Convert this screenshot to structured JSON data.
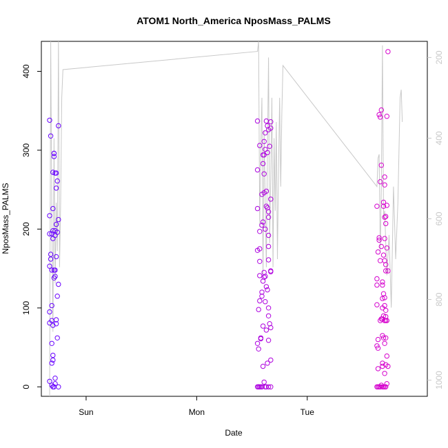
{
  "chart_data": {
    "type": "scatter",
    "title": "ATOM1 North_America NposMass_PALMS",
    "xlabel": "Date",
    "ylabel": "NposMass_PALMS",
    "x_unit": "days",
    "xlim": [
      -0.33,
      2.98
    ],
    "ylim": [
      -12,
      438
    ],
    "x_ticks": [
      {
        "value": 0,
        "label": "Sun"
      },
      {
        "value": 1,
        "label": "Mon"
      },
      {
        "value": 2,
        "label": "Tue"
      }
    ],
    "y_ticks": [
      0,
      100,
      200,
      300,
      400
    ],
    "secondary_axis": {
      "label": "",
      "ylim": [
        1040,
        160
      ],
      "ticks": [
        200,
        400,
        600,
        800,
        1000
      ],
      "color": "#c8c8c8"
    },
    "grid": false,
    "legend": "none",
    "colors": {
      "start": "#6600ff",
      "end": "#e000c8",
      "profile_line": "#c8c8c8"
    },
    "profile_line": [
      {
        "x": -0.33,
        "y": 1040
      },
      {
        "x": -0.32,
        "y": 160
      },
      {
        "x": -0.31,
        "y": 600
      },
      {
        "x": -0.3,
        "y": 880
      },
      {
        "x": -0.29,
        "y": 400
      },
      {
        "x": -0.28,
        "y": 760
      },
      {
        "x": -0.27,
        "y": 560
      },
      {
        "x": -0.26,
        "y": 680
      },
      {
        "x": -0.25,
        "y": 160
      },
      {
        "x": -0.24,
        "y": 720
      },
      {
        "x": -0.23,
        "y": 560
      },
      {
        "x": -0.22,
        "y": 300
      },
      {
        "x": -0.21,
        "y": 230
      },
      {
        "x": 1.55,
        "y": 185
      },
      {
        "x": 1.56,
        "y": 160
      },
      {
        "x": 1.57,
        "y": 620
      },
      {
        "x": 1.58,
        "y": 420
      },
      {
        "x": 1.59,
        "y": 300
      },
      {
        "x": 1.6,
        "y": 740
      },
      {
        "x": 1.61,
        "y": 380
      },
      {
        "x": 1.62,
        "y": 560
      },
      {
        "x": 1.63,
        "y": 720
      },
      {
        "x": 1.64,
        "y": 440
      },
      {
        "x": 1.65,
        "y": 200
      },
      {
        "x": 1.66,
        "y": 660
      },
      {
        "x": 1.67,
        "y": 500
      },
      {
        "x": 1.68,
        "y": 300
      },
      {
        "x": 1.69,
        "y": 720
      },
      {
        "x": 1.7,
        "y": 400
      },
      {
        "x": 1.71,
        "y": 580
      },
      {
        "x": 1.72,
        "y": 360
      },
      {
        "x": 1.73,
        "y": 700
      },
      {
        "x": 1.74,
        "y": 480
      },
      {
        "x": 1.75,
        "y": 300
      },
      {
        "x": 1.76,
        "y": 520
      },
      {
        "x": 1.77,
        "y": 340
      },
      {
        "x": 1.78,
        "y": 220
      },
      {
        "x": 2.63,
        "y": 520
      },
      {
        "x": 2.64,
        "y": 450
      },
      {
        "x": 2.65,
        "y": 440
      },
      {
        "x": 2.66,
        "y": 680
      },
      {
        "x": 2.67,
        "y": 520
      },
      {
        "x": 2.68,
        "y": 170
      },
      {
        "x": 2.69,
        "y": 600
      },
      {
        "x": 2.7,
        "y": 580
      },
      {
        "x": 2.72,
        "y": 740
      },
      {
        "x": 2.74,
        "y": 640
      },
      {
        "x": 2.76,
        "y": 820
      },
      {
        "x": 2.78,
        "y": 520
      },
      {
        "x": 2.8,
        "y": 700
      },
      {
        "x": 2.82,
        "y": 560
      },
      {
        "x": 2.84,
        "y": 300
      },
      {
        "x": 2.85,
        "y": 280
      },
      {
        "x": 2.86,
        "y": 360
      }
    ],
    "series": [
      {
        "values": [
          [
            -0.33,
            7
          ],
          [
            -0.33,
            81
          ],
          [
            -0.33,
            95
          ],
          [
            -0.33,
            153
          ],
          [
            -0.33,
            194
          ],
          [
            -0.33,
            217
          ],
          [
            -0.33,
            338
          ],
          [
            -0.32,
            318
          ],
          [
            -0.32,
            168
          ],
          [
            -0.32,
            162
          ],
          [
            -0.31,
            2
          ],
          [
            -0.31,
            55
          ],
          [
            -0.31,
            30
          ],
          [
            -0.31,
            84
          ],
          [
            -0.31,
            103
          ],
          [
            -0.31,
            148
          ],
          [
            -0.31,
            194
          ],
          [
            -0.3,
            272
          ],
          [
            -0.3,
            0
          ],
          [
            -0.3,
            34
          ],
          [
            -0.3,
            40
          ],
          [
            -0.3,
            78
          ],
          [
            -0.3,
            188
          ],
          [
            -0.3,
            198
          ],
          [
            -0.3,
            226
          ],
          [
            -0.29,
            0
          ],
          [
            -0.29,
            148
          ],
          [
            -0.29,
            138
          ],
          [
            -0.29,
            296
          ],
          [
            -0.29,
            296
          ],
          [
            -0.29,
            292
          ],
          [
            -0.28,
            4
          ],
          [
            -0.28,
            198
          ],
          [
            -0.28,
            192
          ],
          [
            -0.28,
            148
          ],
          [
            -0.28,
            140
          ],
          [
            -0.28,
            271
          ],
          [
            -0.28,
            11
          ],
          [
            -0.27,
            85
          ],
          [
            -0.27,
            80
          ],
          [
            -0.27,
            165
          ],
          [
            -0.27,
            252
          ],
          [
            -0.27,
            271
          ],
          [
            -0.27,
            206
          ],
          [
            -0.26,
            115
          ],
          [
            -0.26,
            196
          ],
          [
            -0.26,
            62
          ],
          [
            -0.26,
            261
          ],
          [
            -0.25,
            0
          ],
          [
            -0.25,
            212
          ],
          [
            -0.25,
            130
          ],
          [
            -0.25,
            331
          ]
        ]
      },
      {
        "values": [
          [
            1.55,
            337
          ],
          [
            1.55,
            275
          ],
          [
            1.55,
            226
          ],
          [
            1.55,
            173
          ],
          [
            1.55,
            55
          ],
          [
            1.55,
            0
          ],
          [
            1.56,
            98
          ],
          [
            1.56,
            48
          ],
          [
            1.56,
            0
          ],
          [
            1.56,
            0
          ],
          [
            1.57,
            306
          ],
          [
            1.57,
            197
          ],
          [
            1.57,
            175
          ],
          [
            1.57,
            159
          ],
          [
            1.57,
            141
          ],
          [
            1.57,
            109
          ],
          [
            1.57,
            0
          ],
          [
            1.58,
            61
          ],
          [
            1.58,
            0
          ],
          [
            1.58,
            62
          ],
          [
            1.59,
            244
          ],
          [
            1.59,
            205
          ],
          [
            1.59,
            120
          ],
          [
            1.59,
            115
          ],
          [
            1.59,
            0
          ],
          [
            1.6,
            294
          ],
          [
            1.6,
            283
          ],
          [
            1.6,
            209
          ],
          [
            1.6,
            134
          ],
          [
            1.6,
            26
          ],
          [
            1.6,
            77
          ],
          [
            1.61,
            311
          ],
          [
            1.61,
            294
          ],
          [
            1.61,
            270
          ],
          [
            1.61,
            246
          ],
          [
            1.61,
            145
          ],
          [
            1.61,
            139
          ],
          [
            1.61,
            6
          ],
          [
            1.62,
            322
          ],
          [
            1.62,
            301
          ],
          [
            1.62,
            200
          ],
          [
            1.62,
            140
          ],
          [
            1.62,
            108
          ],
          [
            1.62,
            0
          ],
          [
            1.63,
            337
          ],
          [
            1.63,
            248
          ],
          [
            1.63,
            229
          ],
          [
            1.63,
            127
          ],
          [
            1.63,
            72
          ],
          [
            1.63,
            0
          ],
          [
            1.64,
            331
          ],
          [
            1.64,
            297
          ],
          [
            1.64,
            227
          ],
          [
            1.64,
            123
          ],
          [
            1.64,
            30
          ],
          [
            1.65,
            326
          ],
          [
            1.65,
            222
          ],
          [
            1.65,
            215
          ],
          [
            1.65,
            192
          ],
          [
            1.65,
            178
          ],
          [
            1.65,
            161
          ],
          [
            1.65,
            100
          ],
          [
            1.65,
            90
          ],
          [
            1.65,
            59
          ],
          [
            1.65,
            0
          ],
          [
            1.66,
            305
          ],
          [
            1.66,
            80
          ],
          [
            1.67,
            336
          ],
          [
            1.67,
            328
          ],
          [
            1.67,
            238
          ],
          [
            1.67,
            147
          ],
          [
            1.67,
            146
          ],
          [
            1.67,
            34
          ],
          [
            1.67,
            75
          ],
          [
            1.67,
            0
          ],
          [
            2.63,
            0
          ],
          [
            2.63,
            52
          ],
          [
            2.63,
            104
          ],
          [
            2.63,
            129
          ],
          [
            2.63,
            137
          ],
          [
            2.63,
            229
          ],
          [
            2.64,
            0
          ],
          [
            2.64,
            49
          ],
          [
            2.64,
            60
          ],
          [
            2.64,
            23
          ],
          [
            2.64,
            171
          ],
          [
            2.65,
            0
          ],
          [
            2.65,
            189
          ],
          [
            2.65,
            186
          ],
          [
            2.65,
            345
          ],
          [
            2.66,
            0
          ],
          [
            2.66,
            84
          ],
          [
            2.66,
            160
          ],
          [
            2.66,
            260
          ],
          [
            2.66,
            342
          ],
          [
            2.67,
            86
          ],
          [
            2.67,
            2
          ],
          [
            2.67,
            178
          ],
          [
            2.67,
            281
          ],
          [
            2.67,
            351
          ],
          [
            2.68,
            0
          ],
          [
            2.68,
            26
          ],
          [
            2.68,
            30
          ],
          [
            2.68,
            65
          ],
          [
            2.68,
            86
          ],
          [
            2.68,
            100
          ],
          [
            2.68,
            129
          ],
          [
            2.68,
            133
          ],
          [
            2.68,
            112
          ],
          [
            2.69,
            0
          ],
          [
            2.69,
            62
          ],
          [
            2.69,
            90
          ],
          [
            2.69,
            118
          ],
          [
            2.69,
            167
          ],
          [
            2.69,
            229
          ],
          [
            2.69,
            234
          ],
          [
            2.7,
            0
          ],
          [
            2.7,
            17
          ],
          [
            2.7,
            55
          ],
          [
            2.7,
            84
          ],
          [
            2.7,
            103
          ],
          [
            2.7,
            113
          ],
          [
            2.7,
            160
          ],
          [
            2.7,
            188
          ],
          [
            2.7,
            215
          ],
          [
            2.7,
            256
          ],
          [
            2.7,
            266
          ],
          [
            2.71,
            0
          ],
          [
            2.71,
            28
          ],
          [
            2.71,
            62
          ],
          [
            2.71,
            84
          ],
          [
            2.71,
            89
          ],
          [
            2.71,
            97
          ],
          [
            2.71,
            147
          ],
          [
            2.71,
            155
          ],
          [
            2.71,
            207
          ],
          [
            2.71,
            216
          ],
          [
            2.72,
            4
          ],
          [
            2.72,
            39
          ],
          [
            2.72,
            84
          ],
          [
            2.72,
            176
          ],
          [
            2.72,
            230
          ],
          [
            2.72,
            343
          ],
          [
            2.73,
            26
          ],
          [
            2.73,
            147
          ],
          [
            2.73,
            425
          ]
        ]
      }
    ]
  }
}
